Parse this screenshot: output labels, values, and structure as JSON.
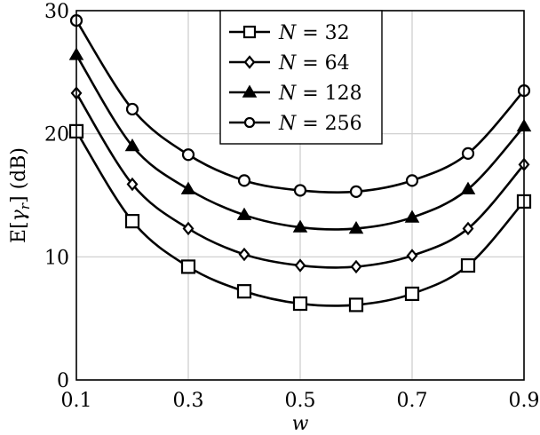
{
  "chart_data": {
    "type": "line",
    "title": "",
    "xlabel": "w",
    "ylabel": "E[γ_r] (dB)",
    "x": [
      0.1,
      0.2,
      0.3,
      0.4,
      0.5,
      0.6,
      0.7,
      0.8,
      0.9
    ],
    "xlim": [
      0.1,
      0.9
    ],
    "ylim": [
      0,
      30
    ],
    "xticks": [
      "0.1",
      "0.3",
      "0.5",
      "0.7",
      "0.9"
    ],
    "yticks": [
      "0",
      "10",
      "20",
      "30"
    ],
    "grid": true,
    "legend_position": "top center",
    "series": [
      {
        "name": "N = 32",
        "marker": "square-open",
        "values": [
          20.2,
          12.9,
          9.2,
          7.2,
          6.2,
          6.1,
          7.0,
          9.3,
          14.5
        ]
      },
      {
        "name": "N = 64",
        "marker": "diamond",
        "values": [
          23.3,
          15.9,
          12.3,
          10.2,
          9.3,
          9.2,
          10.1,
          12.3,
          17.5
        ]
      },
      {
        "name": "N = 128",
        "marker": "triangle-filled",
        "values": [
          26.4,
          19.0,
          15.5,
          13.4,
          12.4,
          12.3,
          13.2,
          15.5,
          20.6
        ]
      },
      {
        "name": "N = 256",
        "marker": "circle-open",
        "values": [
          29.2,
          22.0,
          18.3,
          16.2,
          15.4,
          15.3,
          16.2,
          18.4,
          23.5
        ]
      }
    ]
  },
  "axes": {
    "xlabel": "w",
    "ylabel_main": "E[",
    "ylabel_gamma": "γ",
    "ylabel_sub": "r",
    "ylabel_tail": "] (dB)"
  },
  "legend": [
    {
      "prefix": "N",
      "eq": " = 32"
    },
    {
      "prefix": "N",
      "eq": " = 64"
    },
    {
      "prefix": "N",
      "eq": " = 128"
    },
    {
      "prefix": "N",
      "eq": " = 256"
    }
  ]
}
